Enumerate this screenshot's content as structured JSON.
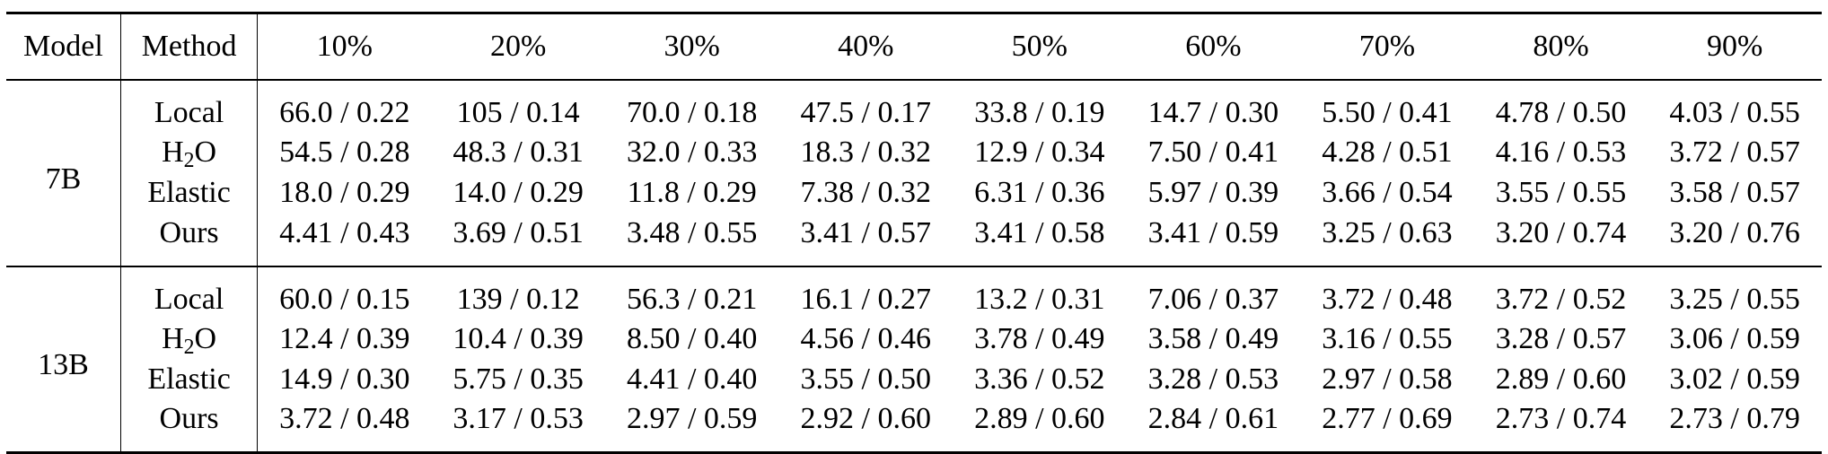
{
  "table": {
    "header": {
      "model": "Model",
      "method": "Method",
      "columns": [
        "10%",
        "20%",
        "30%",
        "40%",
        "50%",
        "60%",
        "70%",
        "80%",
        "90%"
      ]
    },
    "groups": [
      {
        "model": "7B",
        "rows": [
          {
            "method": "Local",
            "values": [
              "66.0 / 0.22",
              "105 / 0.14",
              "70.0 / 0.18",
              "47.5 / 0.17",
              "33.8 / 0.19",
              "14.7 / 0.30",
              "5.50 / 0.41",
              "4.78 / 0.50",
              "4.03 / 0.55"
            ]
          },
          {
            "method_parts": [
              "H",
              "2",
              "O"
            ],
            "values": [
              "54.5 / 0.28",
              "48.3 / 0.31",
              "32.0 / 0.33",
              "18.3 / 0.32",
              "12.9 / 0.34",
              "7.50 / 0.41",
              "4.28 / 0.51",
              "4.16 / 0.53",
              "3.72 / 0.57"
            ]
          },
          {
            "method": "Elastic",
            "values": [
              "18.0 / 0.29",
              "14.0 / 0.29",
              "11.8 / 0.29",
              "7.38 / 0.32",
              "6.31 / 0.36",
              "5.97 / 0.39",
              "3.66 / 0.54",
              "3.55 / 0.55",
              "3.58 / 0.57"
            ]
          },
          {
            "method": "Ours",
            "values": [
              "4.41 / 0.43",
              "3.69 / 0.51",
              "3.48 / 0.55",
              "3.41 / 0.57",
              "3.41 / 0.58",
              "3.41 / 0.59",
              "3.25 / 0.63",
              "3.20 / 0.74",
              "3.20 / 0.76"
            ]
          }
        ]
      },
      {
        "model": "13B",
        "rows": [
          {
            "method": "Local",
            "values": [
              "60.0 / 0.15",
              "139 / 0.12",
              "56.3 / 0.21",
              "16.1 / 0.27",
              "13.2 / 0.31",
              "7.06 / 0.37",
              "3.72 / 0.48",
              "3.72 / 0.52",
              "3.25 / 0.55"
            ]
          },
          {
            "method_parts": [
              "H",
              "2",
              "O"
            ],
            "values": [
              "12.4 / 0.39",
              "10.4 / 0.39",
              "8.50 / 0.40",
              "4.56 / 0.46",
              "3.78 / 0.49",
              "3.58 / 0.49",
              "3.16 / 0.55",
              "3.28 / 0.57",
              "3.06 / 0.59"
            ]
          },
          {
            "method": "Elastic",
            "values": [
              "14.9 / 0.30",
              "5.75 / 0.35",
              "4.41 / 0.40",
              "3.55 / 0.50",
              "3.36 / 0.52",
              "3.28 / 0.53",
              "2.97 / 0.58",
              "2.89 / 0.60",
              "3.02 / 0.59"
            ]
          },
          {
            "method": "Ours",
            "values": [
              "3.72 / 0.48",
              "3.17 / 0.53",
              "2.97 / 0.59",
              "2.92 / 0.60",
              "2.89 / 0.60",
              "2.84 / 0.61",
              "2.77 / 0.69",
              "2.73 / 0.74",
              "2.73 / 0.79"
            ]
          }
        ]
      }
    ]
  }
}
